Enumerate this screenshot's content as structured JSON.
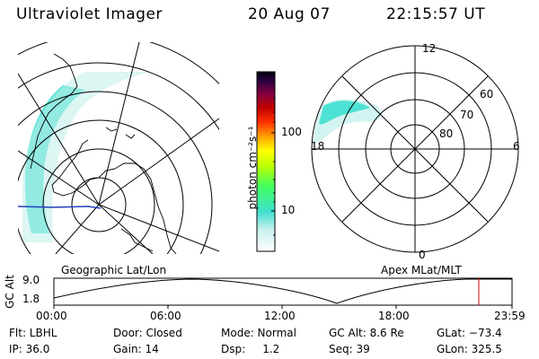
{
  "header": {
    "instrument": "Ultraviolet Imager",
    "date": "20 Aug 07",
    "time": "22:15:57 UT"
  },
  "left_panel": {
    "label": "Geographic Lat/Lon"
  },
  "right_panel": {
    "label": "Apex MLat/MLT",
    "lat_rings": [
      "80",
      "70",
      "60"
    ],
    "mlt_labels": {
      "top": "12",
      "bottom": "0",
      "left": "18",
      "right": "6"
    }
  },
  "colorbar": {
    "unit_label": "photon cm⁻²s⁻¹",
    "ticks": [
      "100",
      "10"
    ]
  },
  "altitude_plot": {
    "ylabel": "GC Alt",
    "yticks": [
      "9.0",
      "1.8"
    ],
    "xticks": [
      "00:00",
      "06:00",
      "12:00",
      "18:00",
      "23:59"
    ],
    "marker_time": "22:15:57"
  },
  "status": {
    "flt": "Flt: LBHL",
    "ip": "IP: 36.0",
    "door": "Door: Closed",
    "gain": "Gain: 14",
    "mode": "Mode: Normal",
    "dsp": "Dsp:     1.2",
    "gc_alt": "GC Alt: 8.6 Re",
    "seq": "Seq: 39",
    "glat": "GLat: −73.4",
    "glon": "GLon: 325.5"
  },
  "colors": {
    "aurora": "#3fe0d0",
    "aurora_light": "#b8f0ec",
    "marker": "#e00000",
    "coast_blue": "#2040c0"
  }
}
